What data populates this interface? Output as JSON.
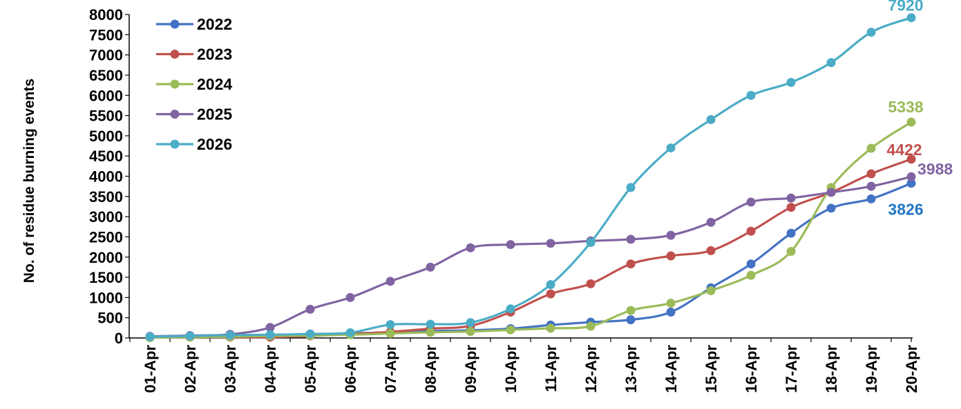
{
  "chart_data": {
    "type": "line",
    "title": "",
    "xlabel": "",
    "ylabel": "No. of residue burning events",
    "ylim": [
      0,
      8000
    ],
    "y_step": 500,
    "grid": false,
    "legend_position": "top-left",
    "categories": [
      "01-Apr",
      "02-Apr",
      "03-Apr",
      "04-Apr",
      "05-Apr",
      "06-Apr",
      "07-Apr",
      "08-Apr",
      "09-Apr",
      "10-Apr",
      "11-Apr",
      "12-Apr",
      "13-Apr",
      "14-Apr",
      "15-Apr",
      "16-Apr",
      "17-Apr",
      "18-Apr",
      "19-Apr",
      "20-Apr"
    ],
    "series": [
      {
        "name": "2022",
        "color": "#4472C4",
        "values": [
          30,
          50,
          60,
          70,
          90,
          110,
          140,
          170,
          190,
          230,
          320,
          390,
          450,
          640,
          1240,
          1830,
          2590,
          3210,
          3440,
          3826
        ],
        "end_label": "3826",
        "end_label_color": "#1F77C4"
      },
      {
        "name": "2023",
        "color": "#C0504D",
        "values": [
          10,
          20,
          20,
          20,
          50,
          100,
          150,
          230,
          300,
          640,
          1090,
          1340,
          1830,
          2030,
          2160,
          2640,
          3230,
          3600,
          4060,
          4422
        ],
        "end_label": "4422",
        "end_label_color": "#C0504D"
      },
      {
        "name": "2024",
        "color": "#9BBB59",
        "values": [
          10,
          20,
          30,
          50,
          60,
          80,
          110,
          140,
          160,
          200,
          240,
          290,
          680,
          860,
          1170,
          1550,
          2140,
          3720,
          4690,
          5338
        ],
        "end_label": "5338",
        "end_label_color": "#9BBB59"
      },
      {
        "name": "2025",
        "color": "#8064A2",
        "values": [
          40,
          60,
          90,
          260,
          710,
          1000,
          1400,
          1750,
          2230,
          2310,
          2340,
          2400,
          2440,
          2540,
          2860,
          3360,
          3460,
          3600,
          3750,
          3988
        ],
        "end_label": "3988",
        "end_label_color": "#8064A2"
      },
      {
        "name": "2026",
        "color": "#4BACC6",
        "values": [
          30,
          50,
          70,
          80,
          100,
          130,
          330,
          340,
          380,
          720,
          1320,
          2360,
          3720,
          4700,
          5400,
          6000,
          6320,
          6810,
          7560,
          7920
        ],
        "end_label": "7920",
        "end_label_color": "#4BACC6"
      }
    ]
  }
}
